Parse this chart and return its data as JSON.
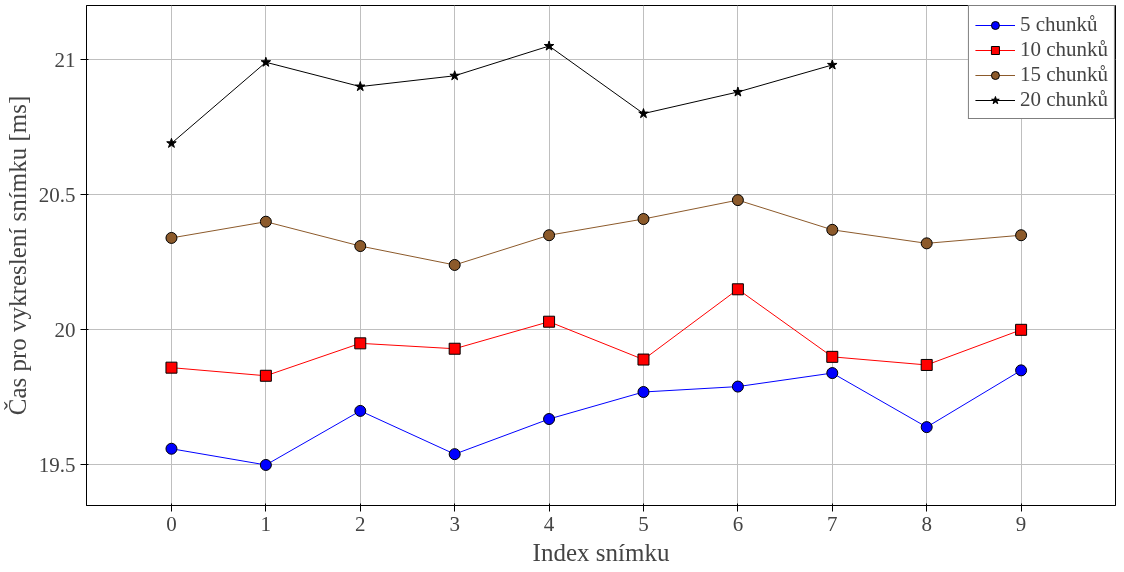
{
  "chart_data": {
    "type": "line",
    "xlabel": "Index snímku",
    "ylabel": "Čas pro vykreslení snímku [ms]",
    "x": [
      0,
      1,
      2,
      3,
      4,
      5,
      6,
      7,
      8,
      9
    ],
    "xlim": [
      -0.9,
      10
    ],
    "xticks": [
      0,
      1,
      2,
      3,
      4,
      5,
      6,
      7,
      8,
      9
    ],
    "ylim": [
      19.35,
      21.2
    ],
    "yticks": [
      19.5,
      20,
      20.5,
      21
    ],
    "grid": true,
    "legend": "top right",
    "line_style": "solid",
    "series": [
      {
        "name": "5 chunků",
        "color": "#0000ff",
        "marker": "circle",
        "values": [
          19.56,
          19.5,
          19.7,
          19.54,
          19.67,
          19.77,
          19.79,
          19.84,
          19.64,
          19.85
        ]
      },
      {
        "name": "10 chunků",
        "color": "#ff0000",
        "marker": "square",
        "values": [
          19.86,
          19.83,
          19.95,
          19.93,
          20.03,
          19.89,
          20.15,
          19.9,
          19.87,
          20.0
        ]
      },
      {
        "name": "15 chunků",
        "color": "#8c5a2b",
        "marker": "circle",
        "values": [
          20.34,
          20.4,
          20.31,
          20.24,
          20.35,
          20.41,
          20.48,
          20.37,
          20.32,
          20.35
        ]
      },
      {
        "name": "20 chunků",
        "color": "#000000",
        "marker": "star",
        "values": [
          20.69,
          20.99,
          20.9,
          20.94,
          21.05,
          20.8,
          20.88,
          20.98,
          null,
          null
        ]
      }
    ]
  }
}
